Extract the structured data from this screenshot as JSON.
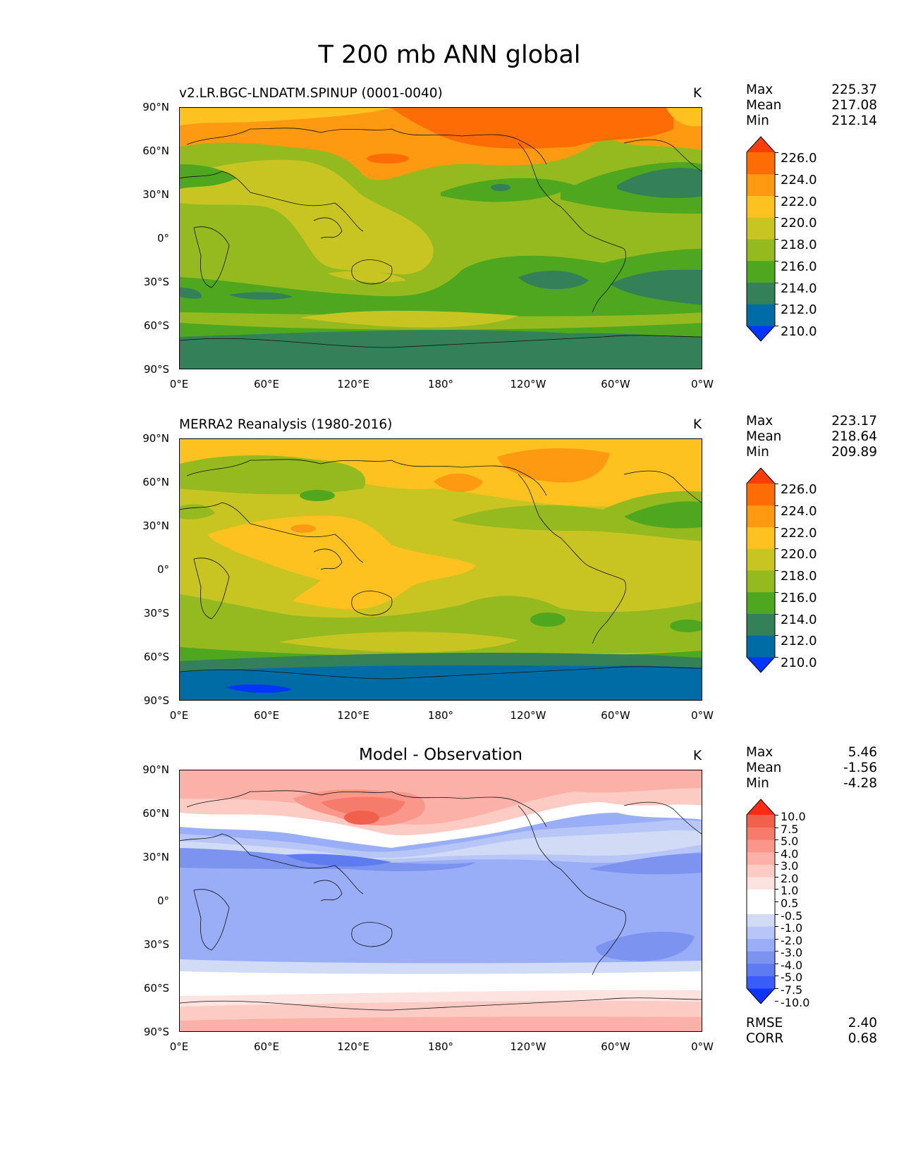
{
  "suptitle": "T 200 mb ANN global",
  "panels": [
    {
      "title": "v2.LR.BGC-LNDATM.SPINUP (0001-0040)",
      "units": "K",
      "stats": [
        {
          "label": "Max",
          "value": "225.37"
        },
        {
          "label": "Mean",
          "value": "217.08"
        },
        {
          "label": "Min",
          "value": "212.14"
        }
      ],
      "colorbar_labels": [
        "226.0",
        "224.0",
        "222.0",
        "220.0",
        "218.0",
        "216.0",
        "214.0",
        "212.0",
        "210.0"
      ]
    },
    {
      "title": "MERRA2 Reanalysis (1980-2016)",
      "units": "K",
      "stats": [
        {
          "label": "Max",
          "value": "223.17"
        },
        {
          "label": "Mean",
          "value": "218.64"
        },
        {
          "label": "Min",
          "value": "209.89"
        }
      ],
      "colorbar_labels": [
        "226.0",
        "224.0",
        "222.0",
        "220.0",
        "218.0",
        "216.0",
        "214.0",
        "212.0",
        "210.0"
      ]
    },
    {
      "title": "Model - Observation",
      "units": "K",
      "stats": [
        {
          "label": "Max",
          "value": "5.46"
        },
        {
          "label": "Mean",
          "value": "-1.56"
        },
        {
          "label": "Min",
          "value": "-4.28"
        }
      ],
      "colorbar_labels": [
        "10.0",
        "7.5",
        "5.0",
        "4.0",
        "3.0",
        "2.0",
        "1.0",
        "0.5",
        "-0.5",
        "-1.0",
        "-2.0",
        "-3.0",
        "-4.0",
        "-5.0",
        "-7.5",
        "-10.0"
      ],
      "metrics": [
        {
          "label": "RMSE",
          "value": "2.40"
        },
        {
          "label": "CORR",
          "value": "0.68"
        }
      ]
    }
  ],
  "y_ticks": [
    "90°N",
    "60°N",
    "30°N",
    "0°",
    "30°S",
    "60°S",
    "90°S"
  ],
  "x_ticks": [
    "0°E",
    "60°E",
    "120°E",
    "180°",
    "120°W",
    "60°W",
    "0°W"
  ],
  "colors": {
    "abs": [
      "#0036ff",
      "#006ca6",
      "#348059",
      "#4ea71e",
      "#95ba1f",
      "#c8c523",
      "#fdc220",
      "#fd9a12",
      "#fe6c06",
      "#fe3c0a"
    ],
    "diff": [
      "#0f34fc",
      "#3a5cf8",
      "#5e7cf0",
      "#7c94f0",
      "#9aaef8",
      "#b7c5f7",
      "#d1dbf6",
      "#ffffff",
      "#ffffff",
      "#fde3e0",
      "#fccbc4",
      "#fbb1a7",
      "#fa978a",
      "#f57c6b",
      "#f1604d",
      "#ff2a14"
    ]
  }
}
